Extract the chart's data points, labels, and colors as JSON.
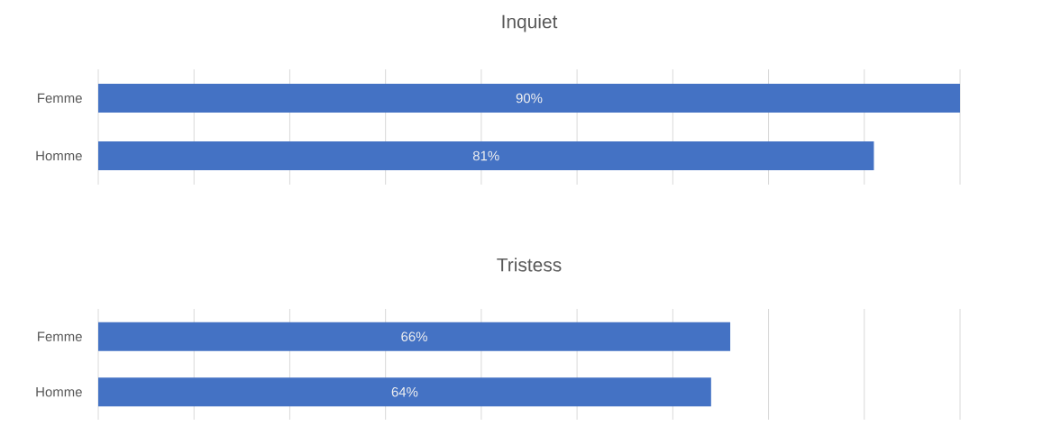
{
  "chart_data": [
    {
      "type": "bar",
      "orientation": "horizontal",
      "title": "Inquiet",
      "categories": [
        "Femme",
        "Homme"
      ],
      "values": [
        90,
        81
      ],
      "value_labels": [
        "90%",
        "81%"
      ],
      "color": "#4472c4",
      "xlim": [
        0,
        90
      ],
      "xticks": [
        {
          "value": 0,
          "label": null
        },
        {
          "value": 10,
          "label": null
        },
        {
          "value": 20,
          "label": null
        },
        {
          "value": 30,
          "label": null
        },
        {
          "value": 40,
          "label": null
        },
        {
          "value": 50,
          "label": null
        },
        {
          "value": 60,
          "label": null
        },
        {
          "value": 70,
          "label": null
        },
        {
          "value": 80,
          "label": null
        },
        {
          "value": 90,
          "label": null
        }
      ],
      "grid": "x",
      "tick_labels": "y"
    },
    {
      "type": "bar",
      "orientation": "horizontal",
      "title": "Tristess",
      "categories": [
        "Femme",
        "Homme"
      ],
      "values": [
        66,
        64
      ],
      "value_labels": [
        "66%",
        "64%"
      ],
      "color": "#4472c4",
      "xlim": [
        0,
        90
      ],
      "xticks": [
        {
          "value": 0,
          "label": null
        },
        {
          "value": 10,
          "label": null
        },
        {
          "value": 20,
          "label": null
        },
        {
          "value": 30,
          "label": null
        },
        {
          "value": 40,
          "label": null
        },
        {
          "value": 50,
          "label": null
        },
        {
          "value": 60,
          "label": null
        },
        {
          "value": 70,
          "label": null
        },
        {
          "value": 80,
          "label": null
        },
        {
          "value": 90,
          "label": null
        }
      ],
      "grid": "x",
      "tick_labels": "y"
    }
  ]
}
